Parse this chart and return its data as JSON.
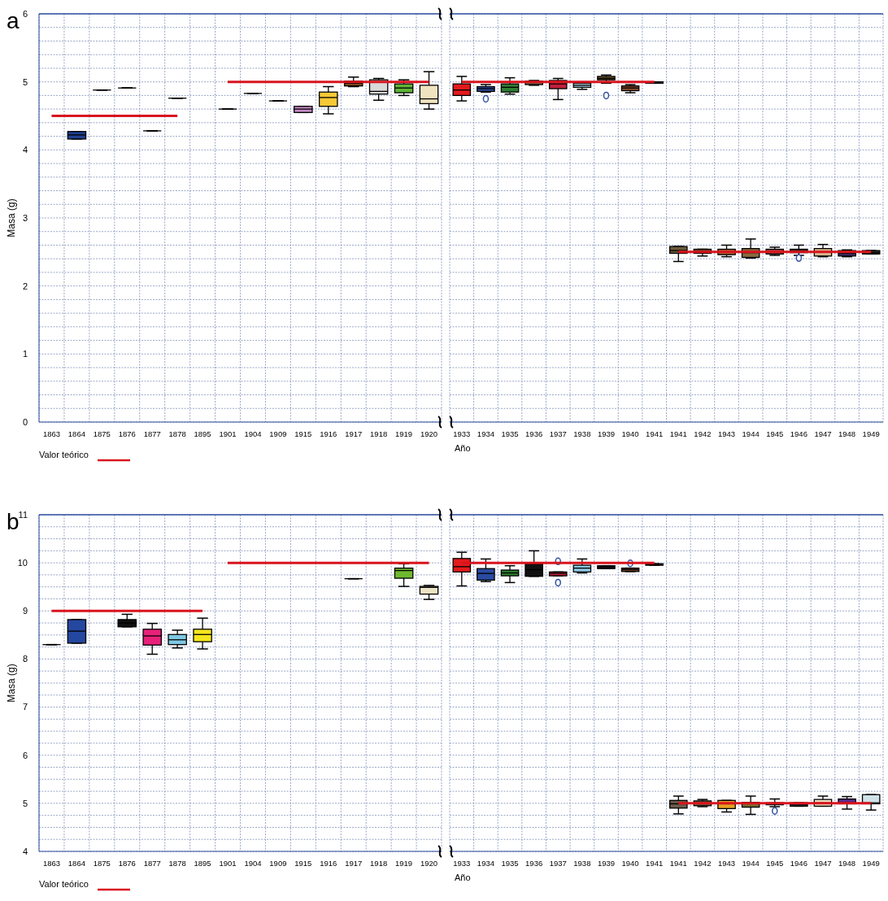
{
  "chart_data": [
    {
      "type": "box",
      "title": "a",
      "ylabel": "Masa (g)",
      "categories": [
        "1863",
        "1864",
        "1875",
        "1876",
        "1877",
        "1878",
        "1895",
        "1901",
        "1904",
        "1909",
        "1915",
        "1916",
        "1917",
        "1918",
        "1919",
        "1920"
      ],
      "ylim": [
        0,
        6
      ],
      "yticks": [
        0,
        {
          "value": 0.2,
          "label": null
        },
        {
          "value": 0.4,
          "label": null
        },
        {
          "value": 0.6,
          "label": null
        },
        {
          "value": 0.8,
          "label": null
        },
        1,
        {
          "value": 1.2,
          "label": null
        },
        {
          "value": 1.4,
          "label": null
        },
        {
          "value": 1.6,
          "label": null
        },
        {
          "value": 1.8,
          "label": null
        },
        2,
        {
          "value": 2.2,
          "label": null
        },
        {
          "value": 2.4,
          "label": null
        },
        {
          "value": 2.6,
          "label": null
        },
        {
          "value": 2.8,
          "label": null
        },
        3,
        {
          "value": 3.2,
          "label": null
        },
        {
          "value": 3.4,
          "label": null
        },
        {
          "value": 3.6,
          "label": null
        },
        {
          "value": 3.8,
          "label": null
        },
        4,
        {
          "value": 4.2,
          "label": null
        },
        {
          "value": 4.4,
          "label": null
        },
        {
          "value": 4.6,
          "label": null
        },
        {
          "value": 4.8,
          "label": null
        },
        5,
        {
          "value": 5.2,
          "label": null
        },
        {
          "value": 5.4,
          "label": null
        },
        {
          "value": 5.6,
          "label": null
        },
        {
          "value": 5.8,
          "label": null
        },
        6
      ],
      "grid": true,
      "legend": "bottom left",
      "series": [
        {
          "colors": [
            null,
            "#1f3f8f",
            "#000000",
            "#000000",
            "#000000",
            "#000000",
            null,
            "#000000",
            "#000000",
            "#000000",
            "#c68bc6",
            "#f7c936",
            "#7a4a1a",
            "#d9d9d9",
            "#5fb336",
            "#f0e4c0"
          ],
          "boxes": [
            null,
            {
              "low": 4.16,
              "q1": 4.16,
              "median": 4.22,
              "q3": 4.27,
              "high": 4.27
            },
            {
              "low": 4.88,
              "q1": 4.88,
              "median": 4.88,
              "q3": 4.88,
              "high": 4.88
            },
            {
              "low": 4.91,
              "q1": 4.91,
              "median": 4.91,
              "q3": 4.91,
              "high": 4.91
            },
            {
              "low": 4.28,
              "q1": 4.28,
              "median": 4.28,
              "q3": 4.28,
              "high": 4.28
            },
            {
              "low": 4.76,
              "q1": 4.76,
              "median": 4.76,
              "q3": 4.76,
              "high": 4.76
            },
            null,
            {
              "low": 4.6,
              "q1": 4.6,
              "median": 4.6,
              "q3": 4.6,
              "high": 4.6
            },
            {
              "low": 4.83,
              "q1": 4.83,
              "median": 4.83,
              "q3": 4.83,
              "high": 4.83
            },
            {
              "low": 4.72,
              "q1": 4.72,
              "median": 4.72,
              "q3": 4.72,
              "high": 4.72
            },
            {
              "low": 4.55,
              "q1": 4.55,
              "median": 4.6,
              "q3": 4.64,
              "high": 4.64
            },
            {
              "low": 4.53,
              "q1": 4.64,
              "median": 4.77,
              "q3": 4.85,
              "high": 4.93
            },
            {
              "low": 4.93,
              "q1": 4.94,
              "median": 4.98,
              "q3": 5.01,
              "high": 5.07
            },
            {
              "low": 4.73,
              "q1": 4.82,
              "median": 4.86,
              "q3": 5.03,
              "high": 5.05
            },
            {
              "low": 4.8,
              "q1": 4.84,
              "median": 4.91,
              "q3": 4.97,
              "high": 5.03
            },
            {
              "low": 4.6,
              "q1": 4.68,
              "median": 4.75,
              "q3": 4.95,
              "high": 5.15
            }
          ]
        },
        {
          "type": "line",
          "name": "Valor teórico",
          "color": "#d9141e",
          "values": [
            4.5,
            4.5,
            4.5,
            4.5,
            4.5,
            4.5,
            null,
            null,
            null,
            null,
            null,
            null,
            null,
            null,
            null,
            null
          ]
        },
        {
          "type": "line",
          "color": "#d9141e",
          "values": [
            null,
            null,
            null,
            null,
            null,
            null,
            null,
            5,
            5,
            5,
            5,
            5,
            5,
            5,
            5,
            5
          ]
        }
      ]
    },
    {
      "type": "box",
      "xlabel": "Año",
      "tick_labels": "x",
      "categories": [
        "1933",
        "1934",
        "1935",
        "1936",
        "1937",
        "1938",
        "1939",
        "1940",
        "1941",
        "1941",
        "1942",
        "1943",
        "1944",
        "1945",
        "1946",
        "1947",
        "1948",
        "1949"
      ],
      "ylim": [
        0,
        6
      ],
      "yticks": [
        0,
        {
          "value": 0.2,
          "label": null
        },
        {
          "value": 0.4,
          "label": null
        },
        {
          "value": 0.6,
          "label": null
        },
        {
          "value": 0.8,
          "label": null
        },
        1,
        {
          "value": 1.2,
          "label": null
        },
        {
          "value": 1.4,
          "label": null
        },
        {
          "value": 1.6,
          "label": null
        },
        {
          "value": 1.8,
          "label": null
        },
        2,
        {
          "value": 2.2,
          "label": null
        },
        {
          "value": 2.4,
          "label": null
        },
        {
          "value": 2.6,
          "label": null
        },
        {
          "value": 2.8,
          "label": null
        },
        3,
        {
          "value": 3.2,
          "label": null
        },
        {
          "value": 3.4,
          "label": null
        },
        {
          "value": 3.6,
          "label": null
        },
        {
          "value": 3.8,
          "label": null
        },
        4,
        {
          "value": 4.2,
          "label": null
        },
        {
          "value": 4.4,
          "label": null
        },
        {
          "value": 4.6,
          "label": null
        },
        {
          "value": 4.8,
          "label": null
        },
        5,
        {
          "value": 5.2,
          "label": null
        },
        {
          "value": 5.4,
          "label": null
        },
        {
          "value": 5.6,
          "label": null
        },
        {
          "value": 5.8,
          "label": null
        },
        6
      ],
      "grid": true,
      "series": [
        {
          "colors": [
            "#e31a1c",
            "#2a4aa0",
            "#2e7d32",
            "#8b6a4a",
            "#c0203c",
            "#a8cfe0",
            "#6e5020",
            "#8b4a2a",
            "#333333",
            "#6b5a3a",
            "#7a4a2a",
            "#b06030",
            "#8a6a40",
            "#a04040",
            "#805020",
            "#d8b890",
            "#3a2a6a",
            "#2a2a2a"
          ],
          "boxes": [
            {
              "low": 4.72,
              "q1": 4.8,
              "median": 4.88,
              "q3": 4.97,
              "high": 5.08
            },
            {
              "low": 4.85,
              "q1": 4.86,
              "median": 4.9,
              "q3": 4.93,
              "high": 4.96,
              "outliers": [
                4.75
              ]
            },
            {
              "low": 4.82,
              "q1": 4.85,
              "median": 4.92,
              "q3": 4.97,
              "high": 5.06
            },
            {
              "low": 4.95,
              "q1": 4.96,
              "median": 4.99,
              "q3": 5.01,
              "high": 5.02
            },
            {
              "low": 4.74,
              "q1": 4.9,
              "median": 4.97,
              "q3": 5.02,
              "high": 5.05
            },
            {
              "low": 4.89,
              "q1": 4.92,
              "median": 4.95,
              "q3": 4.98,
              "high": 5.0
            },
            {
              "low": 4.98,
              "q1": 5.03,
              "median": 5.05,
              "q3": 5.08,
              "high": 5.1,
              "outliers": [
                4.8
              ]
            },
            {
              "low": 4.84,
              "q1": 4.87,
              "median": 4.91,
              "q3": 4.94,
              "high": 4.96
            },
            {
              "low": 4.98,
              "q1": 4.98,
              "median": 4.99,
              "q3": 5.0,
              "high": 5.0
            },
            {
              "low": 2.36,
              "q1": 2.48,
              "median": 2.52,
              "q3": 2.58,
              "high": 2.58
            },
            {
              "low": 2.44,
              "q1": 2.48,
              "median": 2.51,
              "q3": 2.54,
              "high": 2.54
            },
            {
              "low": 2.43,
              "q1": 2.46,
              "median": 2.5,
              "q3": 2.54,
              "high": 2.6
            },
            {
              "low": 2.41,
              "q1": 2.42,
              "median": 2.49,
              "q3": 2.55,
              "high": 2.69
            },
            {
              "low": 2.45,
              "q1": 2.47,
              "median": 2.5,
              "q3": 2.54,
              "high": 2.57
            },
            {
              "low": 2.45,
              "q1": 2.49,
              "median": 2.52,
              "q3": 2.54,
              "high": 2.6,
              "outliers": [
                2.41
              ]
            },
            {
              "low": 2.43,
              "q1": 2.44,
              "median": 2.5,
              "q3": 2.55,
              "high": 2.61
            },
            {
              "low": 2.43,
              "q1": 2.44,
              "median": 2.48,
              "q3": 2.52,
              "high": 2.53
            },
            {
              "low": 2.47,
              "q1": 2.47,
              "median": 2.49,
              "q3": 2.52,
              "high": 2.52
            }
          ]
        },
        {
          "type": "line",
          "color": "#d9141e",
          "values": [
            5,
            5,
            5,
            5,
            5,
            5,
            5,
            5,
            5,
            null,
            null,
            null,
            null,
            null,
            null,
            null,
            null,
            null
          ]
        },
        {
          "type": "line",
          "color": "#d9141e",
          "values": [
            null,
            null,
            null,
            null,
            null,
            null,
            null,
            null,
            null,
            2.5,
            2.5,
            2.5,
            2.5,
            2.5,
            2.5,
            2.5,
            2.5,
            2.5
          ]
        }
      ]
    },
    {
      "type": "box",
      "title": "b",
      "ylabel": "Masa (g)",
      "categories": [
        "1863",
        "1864",
        "1875",
        "1876",
        "1877",
        "1878",
        "1895",
        "1901",
        "1904",
        "1909",
        "1915",
        "1916",
        "1917",
        "1918",
        "1919",
        "1920"
      ],
      "ylim": [
        4,
        11
      ],
      "yticks": [
        4,
        {
          "value": 4.25,
          "label": null
        },
        {
          "value": 4.5,
          "label": null
        },
        {
          "value": 4.75,
          "label": null
        },
        5,
        {
          "value": 5.25,
          "label": null
        },
        {
          "value": 5.5,
          "label": null
        },
        {
          "value": 5.75,
          "label": null
        },
        6,
        {
          "value": 6.25,
          "label": null
        },
        {
          "value": 6.5,
          "label": null
        },
        {
          "value": 6.75,
          "label": null
        },
        7,
        {
          "value": 7.25,
          "label": null
        },
        {
          "value": 7.5,
          "label": null
        },
        {
          "value": 7.75,
          "label": null
        },
        8,
        {
          "value": 8.25,
          "label": null
        },
        {
          "value": 8.5,
          "label": null
        },
        {
          "value": 8.75,
          "label": null
        },
        9,
        {
          "value": 9.25,
          "label": null
        },
        {
          "value": 9.5,
          "label": null
        },
        {
          "value": 9.75,
          "label": null
        },
        10,
        {
          "value": 10.25,
          "label": null
        },
        {
          "value": 10.5,
          "label": null
        },
        {
          "value": 10.75,
          "label": null
        },
        11
      ],
      "grid": true,
      "legend": "bottom left",
      "series": [
        {
          "colors": [
            "#000000",
            "#2447a0",
            null,
            "#111111",
            "#e8207a",
            "#7ec8e3",
            "#f5e61e",
            null,
            null,
            null,
            null,
            null,
            "#000000",
            null,
            "#70b830",
            "#ece2c4"
          ],
          "boxes": [
            {
              "low": 8.3,
              "q1": 8.3,
              "median": 8.3,
              "q3": 8.3,
              "high": 8.3
            },
            {
              "low": 8.33,
              "q1": 8.33,
              "median": 8.58,
              "q3": 8.82,
              "high": 8.82
            },
            null,
            {
              "low": 8.67,
              "q1": 8.67,
              "median": 8.75,
              "q3": 8.82,
              "high": 8.93
            },
            {
              "low": 8.1,
              "q1": 8.29,
              "median": 8.48,
              "q3": 8.62,
              "high": 8.74
            },
            {
              "low": 8.23,
              "q1": 8.3,
              "median": 8.4,
              "q3": 8.51,
              "high": 8.6
            },
            {
              "low": 8.21,
              "q1": 8.36,
              "median": 8.51,
              "q3": 8.62,
              "high": 8.85
            },
            null,
            null,
            null,
            null,
            null,
            {
              "low": 9.67,
              "q1": 9.67,
              "median": 9.67,
              "q3": 9.67,
              "high": 9.67
            },
            null,
            {
              "low": 9.51,
              "q1": 9.68,
              "median": 9.84,
              "q3": 9.89,
              "high": 9.98
            },
            {
              "low": 9.24,
              "q1": 9.35,
              "median": 9.49,
              "q3": 9.51,
              "high": 9.53
            }
          ]
        },
        {
          "type": "line",
          "name": "Valor teórico",
          "color": "#d9141e",
          "values": [
            9,
            9,
            9,
            9,
            9,
            9,
            9,
            null,
            null,
            null,
            null,
            null,
            null,
            null,
            null,
            null
          ]
        },
        {
          "type": "line",
          "color": "#d9141e",
          "values": [
            null,
            null,
            null,
            null,
            null,
            null,
            null,
            10,
            10,
            10,
            10,
            10,
            10,
            10,
            10,
            10
          ]
        }
      ]
    },
    {
      "type": "box",
      "xlabel": "Año",
      "tick_labels": "x",
      "categories": [
        "1933",
        "1934",
        "1935",
        "1936",
        "1937",
        "1938",
        "1939",
        "1940",
        "1941",
        "1941",
        "1942",
        "1943",
        "1944",
        "1945",
        "1946",
        "1947",
        "1948",
        "1949"
      ],
      "ylim": [
        4,
        11
      ],
      "yticks": [
        4,
        {
          "value": 4.25,
          "label": null
        },
        {
          "value": 4.5,
          "label": null
        },
        {
          "value": 4.75,
          "label": null
        },
        5,
        {
          "value": 5.25,
          "label": null
        },
        {
          "value": 5.5,
          "label": null
        },
        {
          "value": 5.75,
          "label": null
        },
        6,
        {
          "value": 6.25,
          "label": null
        },
        {
          "value": 6.5,
          "label": null
        },
        {
          "value": 6.75,
          "label": null
        },
        7,
        {
          "value": 7.25,
          "label": null
        },
        {
          "value": 7.5,
          "label": null
        },
        {
          "value": 7.75,
          "label": null
        },
        8,
        {
          "value": 8.25,
          "label": null
        },
        {
          "value": 8.5,
          "label": null
        },
        {
          "value": 8.75,
          "label": null
        },
        9,
        {
          "value": 9.25,
          "label": null
        },
        {
          "value": 9.5,
          "label": null
        },
        {
          "value": 9.75,
          "label": null
        },
        10,
        {
          "value": 10.25,
          "label": null
        },
        {
          "value": 10.5,
          "label": null
        },
        {
          "value": 10.75,
          "label": null
        },
        11
      ],
      "grid": true,
      "series": [
        {
          "colors": [
            "#e31a1c",
            "#2a4aa0",
            "#2e7d32",
            "#111111",
            "#c0203c",
            "#8ecae6",
            "#222222",
            "#7a4020",
            "#b02020",
            "#6a5a4a",
            "#7a5a3a",
            "#e8a020",
            "#7a6a30",
            "#a03040",
            "#303030",
            "#f0e0c0",
            "#5a2a8a",
            "#cfe3e8"
          ],
          "boxes": [
            {
              "low": 9.52,
              "q1": 9.81,
              "median": 9.92,
              "q3": 10.09,
              "high": 10.22
            },
            {
              "low": 9.61,
              "q1": 9.64,
              "median": 9.78,
              "q3": 9.88,
              "high": 10.08
            },
            {
              "low": 9.59,
              "q1": 9.73,
              "median": 9.79,
              "q3": 9.85,
              "high": 9.94
            },
            {
              "low": 9.72,
              "q1": 9.72,
              "median": 9.86,
              "q3": 9.98,
              "high": 10.25
            },
            {
              "low": 9.73,
              "q1": 9.73,
              "median": 9.78,
              "q3": 9.81,
              "high": 9.81,
              "outliers": [
                10.03,
                9.59
              ]
            },
            {
              "low": 9.79,
              "q1": 9.81,
              "median": 9.89,
              "q3": 9.95,
              "high": 10.08
            },
            {
              "low": 9.88,
              "q1": 9.88,
              "median": 9.91,
              "q3": 9.94,
              "high": 9.94
            },
            {
              "low": 9.82,
              "q1": 9.82,
              "median": 9.86,
              "q3": 9.89,
              "high": 9.89,
              "outliers": [
                9.99
              ]
            },
            {
              "low": 9.95,
              "q1": 9.95,
              "median": 9.97,
              "q3": 9.98,
              "high": 9.98
            },
            {
              "low": 4.78,
              "q1": 4.9,
              "median": 4.99,
              "q3": 5.06,
              "high": 5.15
            },
            {
              "low": 4.93,
              "q1": 4.95,
              "median": 5.0,
              "q3": 5.05,
              "high": 5.08
            },
            {
              "low": 4.82,
              "q1": 4.89,
              "median": 4.99,
              "q3": 5.06,
              "high": 5.06
            },
            {
              "low": 4.77,
              "q1": 4.92,
              "median": 5.0,
              "q3": 5.02,
              "high": 5.15
            },
            {
              "low": 4.93,
              "q1": 4.97,
              "median": 5.0,
              "q3": 5.01,
              "high": 5.09,
              "outliers": [
                4.84
              ]
            },
            {
              "low": 4.94,
              "q1": 4.94,
              "median": 4.98,
              "q3": 5.01,
              "high": 5.01
            },
            {
              "low": 4.94,
              "q1": 4.94,
              "median": 5.01,
              "q3": 5.08,
              "high": 5.15
            },
            {
              "low": 4.88,
              "q1": 4.99,
              "median": 5.01,
              "q3": 5.09,
              "high": 5.14
            },
            {
              "low": 4.86,
              "q1": 4.99,
              "median": 5.01,
              "q3": 5.18,
              "high": 5.18
            }
          ]
        },
        {
          "type": "line",
          "color": "#d9141e",
          "values": [
            10,
            10,
            10,
            10,
            10,
            10,
            10,
            10,
            10,
            null,
            null,
            null,
            null,
            null,
            null,
            null,
            null,
            null
          ]
        },
        {
          "type": "line",
          "color": "#d9141e",
          "values": [
            null,
            null,
            null,
            null,
            null,
            null,
            null,
            null,
            null,
            5,
            5,
            5,
            5,
            5,
            5,
            5,
            5,
            5
          ]
        }
      ]
    }
  ]
}
